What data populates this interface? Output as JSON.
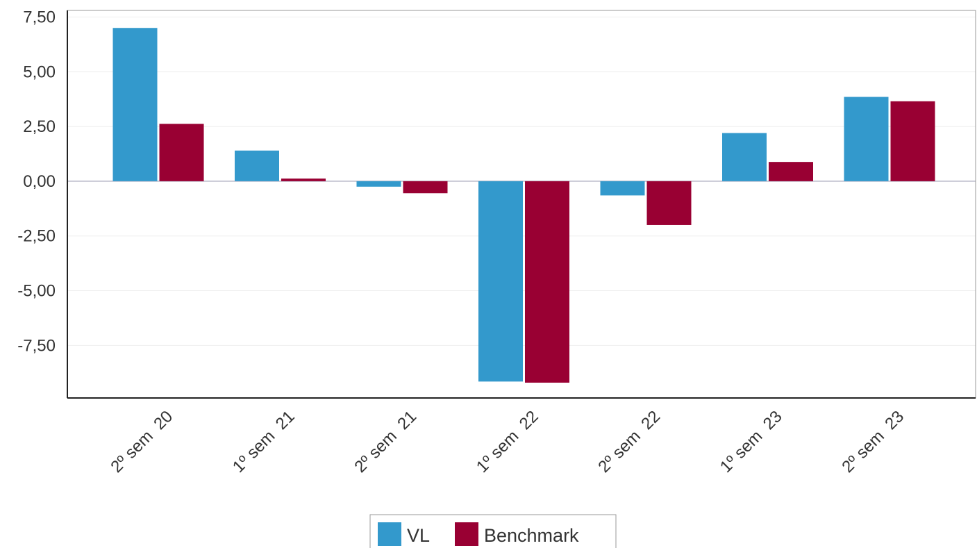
{
  "chart_data": {
    "type": "bar",
    "categories": [
      "2º sem  20",
      "1º sem  21",
      "2º sem  21",
      "1º sem  22",
      "2º sem  22",
      "1º sem  23",
      "2º sem  23"
    ],
    "series": [
      {
        "name": "VL",
        "values": [
          7.0,
          1.4,
          -0.25,
          -9.15,
          -0.65,
          2.2,
          3.85
        ],
        "color": "#3399CC"
      },
      {
        "name": "Benchmark",
        "values": [
          2.62,
          0.12,
          -0.55,
          -9.2,
          -2.0,
          0.88,
          3.65
        ],
        "color": "#990033"
      }
    ],
    "yticks": [
      7.5,
      5,
      2.5,
      0,
      -2.5,
      -5,
      -7.5
    ],
    "ytick_labels": [
      "7,50",
      "5,00",
      "2,50",
      "0,00",
      "-2,50",
      "-5,00",
      "-7,50"
    ],
    "ylim": [
      -9.9,
      7.8
    ],
    "grid": true,
    "legend_position": "bottom-center"
  }
}
